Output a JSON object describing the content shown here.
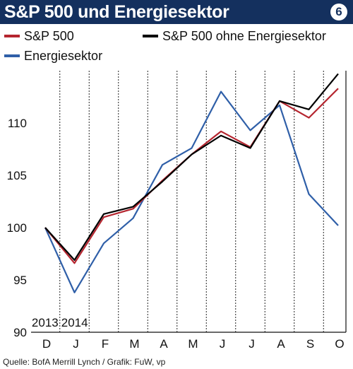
{
  "title": "S&P 500 und Energiesektor",
  "badge": "6",
  "source": "Quelle: BofA Merrill Lynch / Grafik: FuW, vp",
  "colors": {
    "title_bg": "#14305e",
    "sp500": "#b5252f",
    "energy": "#2f5fa8",
    "ex_energy": "#000000",
    "grid": "#222222"
  },
  "chart_data": {
    "type": "line",
    "title": "S&P 500 und Energiesektor",
    "categories": [
      "D",
      "J",
      "F",
      "M",
      "A",
      "M",
      "J",
      "J",
      "A",
      "S",
      "O"
    ],
    "year_labels": [
      "2013",
      "2014"
    ],
    "ylim": [
      90,
      115
    ],
    "yticks": [
      90,
      95,
      100,
      105,
      110
    ],
    "grid": "vertical dashed",
    "legend_position": "top",
    "series": [
      {
        "name": "S&P 500",
        "color": "#b5252f",
        "values": [
          100,
          96.6,
          101.0,
          101.8,
          104.5,
          107.0,
          109.2,
          107.7,
          112.1,
          110.5,
          113.3
        ]
      },
      {
        "name": "S&P 500 ohne Energiesektor",
        "color": "#000000",
        "values": [
          100,
          96.9,
          101.3,
          102.0,
          104.4,
          107.0,
          108.8,
          107.6,
          112.1,
          111.3,
          114.7
        ]
      },
      {
        "name": "Energiesektor",
        "color": "#2f5fa8",
        "values": [
          100,
          93.8,
          98.5,
          100.9,
          106.0,
          107.6,
          113.0,
          109.3,
          111.7,
          103.2,
          100.2
        ]
      }
    ]
  }
}
